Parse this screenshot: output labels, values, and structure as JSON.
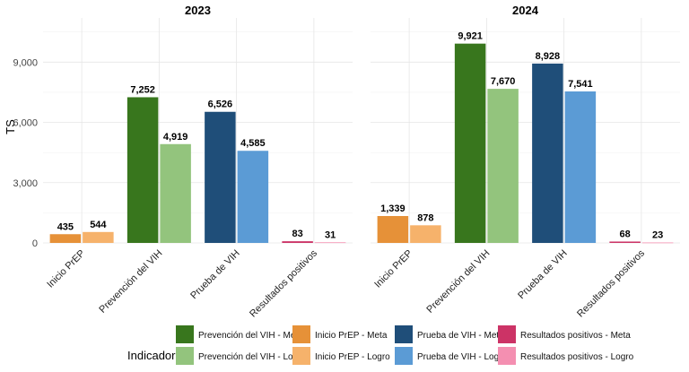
{
  "chart_data": {
    "type": "bar",
    "ylabel": "TS",
    "ylim": [
      0,
      11200
    ],
    "yticks": [
      0,
      3000,
      6000,
      9000
    ],
    "ytick_labels": [
      "0",
      "3,000",
      "6,000",
      "9,000"
    ],
    "grid": true,
    "legend_position": "bottom",
    "legend_title": "Indicador",
    "categories": [
      "Inicio PrEP",
      "Prevención del VIH",
      "Prueba de VIH",
      "Resultados positivos"
    ],
    "series": [
      {
        "name": "Prevención del VIH - Meta",
        "color": "#38761d"
      },
      {
        "name": "Prevención del VIH - Logro",
        "color": "#93c47d"
      },
      {
        "name": "Inicio PrEP - Meta",
        "color": "#e69138"
      },
      {
        "name": "Inicio PrEP - Logro",
        "color": "#f6b26b"
      },
      {
        "name": "Prueba de VIH - Meta",
        "color": "#1f4e79"
      },
      {
        "name": "Prueba de VIH - Logro",
        "color": "#5b9bd5"
      },
      {
        "name": "Resultados positivos - Meta",
        "color": "#cc3366"
      },
      {
        "name": "Resultados positivos - Logro",
        "color": "#f48fb1"
      }
    ],
    "panels": [
      {
        "title": "2023",
        "bars": [
          {
            "category": "Inicio PrEP",
            "meta": 435,
            "logro": 544,
            "meta_label": "435",
            "logro_label": "544",
            "meta_color": "#e69138",
            "logro_color": "#f6b26b"
          },
          {
            "category": "Prevención del VIH",
            "meta": 7252,
            "logro": 4919,
            "meta_label": "7,252",
            "logro_label": "4,919",
            "meta_color": "#38761d",
            "logro_color": "#93c47d"
          },
          {
            "category": "Prueba de VIH",
            "meta": 6526,
            "logro": 4585,
            "meta_label": "6,526",
            "logro_label": "4,585",
            "meta_color": "#1f4e79",
            "logro_color": "#5b9bd5"
          },
          {
            "category": "Resultados positivos",
            "meta": 83,
            "logro": 31,
            "meta_label": "83",
            "logro_label": "31",
            "meta_color": "#cc3366",
            "logro_color": "#f48fb1"
          }
        ]
      },
      {
        "title": "2024",
        "bars": [
          {
            "category": "Inicio PrEP",
            "meta": 1339,
            "logro": 878,
            "meta_label": "1,339",
            "logro_label": "878",
            "meta_color": "#e69138",
            "logro_color": "#f6b26b"
          },
          {
            "category": "Prevención del VIH",
            "meta": 9921,
            "logro": 7670,
            "meta_label": "9,921",
            "logro_label": "7,670",
            "meta_color": "#38761d",
            "logro_color": "#93c47d"
          },
          {
            "category": "Prueba de VIH",
            "meta": 8928,
            "logro": 7541,
            "meta_label": "8,928",
            "logro_label": "7,541",
            "meta_color": "#1f4e79",
            "logro_color": "#5b9bd5"
          },
          {
            "category": "Resultados positivos",
            "meta": 68,
            "logro": 23,
            "meta_label": "68",
            "logro_label": "23",
            "meta_color": "#cc3366",
            "logro_color": "#f48fb1"
          }
        ]
      }
    ]
  }
}
